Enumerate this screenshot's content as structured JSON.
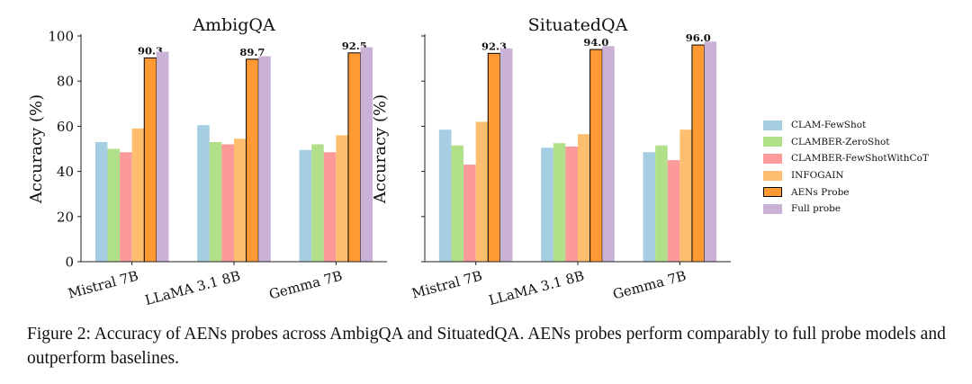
{
  "chart_data": [
    {
      "type": "bar",
      "title": "AmbigQA",
      "ylabel": "Accuracy (%)",
      "ylim": [
        0,
        100
      ],
      "yticks": [
        0,
        20,
        40,
        60,
        80,
        100
      ],
      "categories": [
        "Mistral 7B",
        "LLaMA 3.1 8B",
        "Gemma 7B"
      ],
      "series": [
        {
          "name": "CLAM-FewShot",
          "values": [
            53.0,
            60.5,
            49.5
          ]
        },
        {
          "name": "CLAMBER-ZeroShot",
          "values": [
            50.0,
            53.0,
            52.0
          ]
        },
        {
          "name": "CLAMBER-FewShotWithCoT",
          "values": [
            48.5,
            52.0,
            48.5
          ]
        },
        {
          "name": "INFOGAIN",
          "values": [
            59.0,
            54.5,
            56.0
          ]
        },
        {
          "name": "AENs Probe",
          "values": [
            90.3,
            89.7,
            92.5
          ]
        },
        {
          "name": "Full probe",
          "values": [
            93.0,
            91.0,
            95.0
          ]
        }
      ],
      "data_labels": [
        "90.3",
        "89.7",
        "92.5"
      ],
      "legend": "none",
      "grid": false
    },
    {
      "type": "bar",
      "title": "SituatedQA",
      "ylabel": "Accuracy (%)",
      "ylim": [
        0,
        100
      ],
      "yticks": [
        0,
        20,
        40,
        60,
        80,
        100
      ],
      "categories": [
        "Mistral 7B",
        "LLaMA 3.1 8B",
        "Gemma 7B"
      ],
      "series": [
        {
          "name": "CLAM-FewShot",
          "values": [
            58.5,
            50.5,
            48.5
          ]
        },
        {
          "name": "CLAMBER-ZeroShot",
          "values": [
            51.5,
            52.5,
            51.5
          ]
        },
        {
          "name": "CLAMBER-FewShotWithCoT",
          "values": [
            43.0,
            51.0,
            45.0
          ]
        },
        {
          "name": "INFOGAIN",
          "values": [
            62.0,
            56.5,
            58.5
          ]
        },
        {
          "name": "AENs Probe",
          "values": [
            92.3,
            94.0,
            96.0
          ]
        },
        {
          "name": "Full probe",
          "values": [
            94.5,
            95.5,
            97.5
          ]
        }
      ],
      "data_labels": [
        "92.3",
        "94.0",
        "96.0"
      ],
      "legend": "right",
      "grid": false
    }
  ],
  "legend_items": [
    {
      "label": "CLAM-FewShot",
      "color": "#a6cee3"
    },
    {
      "label": "CLAMBER-ZeroShot",
      "color": "#b2df8a"
    },
    {
      "label": "CLAMBER-FewShotWithCoT",
      "color": "#fb9a99"
    },
    {
      "label": "INFOGAIN",
      "color": "#fdbf6f"
    },
    {
      "label": "AENs Probe",
      "color": "#ff9933"
    },
    {
      "label": "Full probe",
      "color": "#cab2d6"
    }
  ],
  "highlight_series": "AENs Probe",
  "caption": "Figure 2: Accuracy of AENs probes across AmbigQA and SituatedQA. AENs probes perform comparably to full probe models and outperform baselines."
}
